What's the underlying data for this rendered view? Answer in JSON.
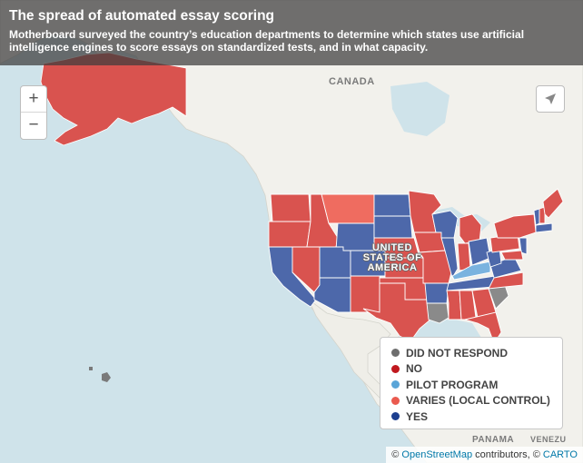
{
  "header": {
    "title": "The spread of automated essay scoring",
    "subtitle": "Motherboard surveyed the country’s education departments to determine which states use artificial intelligence engines to score essays on standardized tests, and in what capacity."
  },
  "map_controls": {
    "zoom_in": "+",
    "zoom_out": "−",
    "locate_icon": "navigation-arrow-icon"
  },
  "map_labels": {
    "canada": "CANADA",
    "usa_line1": "UNITED",
    "usa_line2": "STATES OF",
    "usa_line3": "AMERICA",
    "panama": "PANAMA",
    "venezuela": "VENEZU"
  },
  "legend": {
    "items": [
      {
        "label": "DID NOT RESPOND",
        "color": "#6e6e6e"
      },
      {
        "label": "NO",
        "color": "#c0181e"
      },
      {
        "label": "PILOT PROGRAM",
        "color": "#5aa5d8"
      },
      {
        "label": "VARIES (LOCAL CONTROL)",
        "color": "#ea5a4f"
      },
      {
        "label": "YES",
        "color": "#1d3f8f"
      }
    ]
  },
  "attribution": {
    "prefix": "© ",
    "osm": "OpenStreetMap",
    "middle": " contributors, © ",
    "carto": "CARTO"
  },
  "colors": {
    "yes": "#4d68aa",
    "no": "#d9534f",
    "varies": "#ef6c60",
    "pilot": "#7ab3df",
    "no_response": "#8a8a8a",
    "land": "#f2f1ec",
    "water": "#cfe3ea"
  }
}
